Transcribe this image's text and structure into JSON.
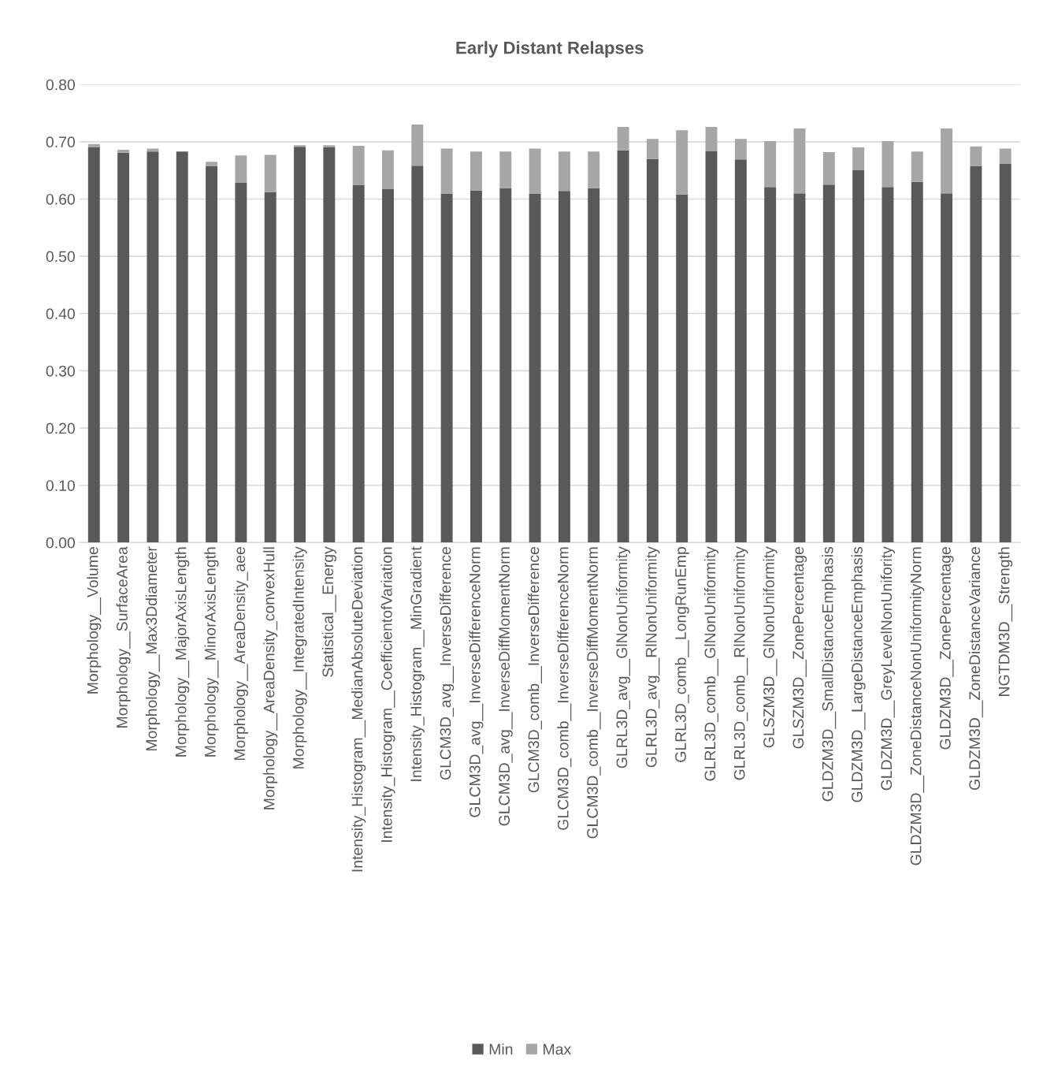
{
  "chart_data": {
    "type": "bar",
    "title": "Early Distant Relapses",
    "stacked": true,
    "categories": [
      "Morphology__Volume",
      "Morphology__SurfaceArea",
      "Morphology__Max3Ddiameter",
      "Morphology__MajorAxisLength",
      "Morphology__MinorAxisLength",
      "Morphology__AreaDensity_aee",
      "Morphology__AreaDensity_convexHull",
      "Morphology__IntegratedIntensity",
      "Statistical__Energy",
      "Intensity_Histogram__MedianAbsoluteDeviation",
      "Intensity_Histogram__CoefficientofVariation",
      "Intensity_Histogram__MinGradient",
      "GLCM3D_avg__InverseDifference",
      "GLCM3D_avg__InverseDifferenceNorm",
      "GLCM3D_avg__InverseDiffMomentNorm",
      "GLCM3D_comb__InverseDifference",
      "GLCM3D_comb__InverseDifferenceNorm",
      "GLCM3D_comb__InverseDiffMomentNorm",
      "GLRL3D_avg__GlNonUniformity",
      "GLRL3D_avg__RlNonUniformity",
      "GLRL3D_comb__LongRunEmp",
      "GLRL3D_comb__GlNonUniformity",
      "GLRL3D_comb__RlNonUniformity",
      "GLSZM3D__GlNonUniformity",
      "GLSZM3D__ZonePercentage",
      "GLDZM3D__SmallDistanceEmphasis",
      "GLDZM3D__LargeDistanceEmphasis",
      "GLDZM3D__GreyLevelNonUnifority",
      "GLDZM3D__ZoneDistanceNonUniformityNorm",
      "GLDZM3D__ZonePercentage",
      "GLDZM3D__ZoneDistanceVariance",
      "NGTDM3D__Strength"
    ],
    "series": [
      {
        "name": "Min",
        "color": "#595959",
        "values": [
          0.69,
          0.681,
          0.683,
          0.683,
          0.657,
          0.629,
          0.612,
          0.691,
          0.69,
          0.624,
          0.618,
          0.658,
          0.609,
          0.615,
          0.619,
          0.609,
          0.614,
          0.619,
          0.685,
          0.67,
          0.608,
          0.684,
          0.669,
          0.621,
          0.61,
          0.625,
          0.651,
          0.621,
          0.63,
          0.61,
          0.657,
          0.662
        ]
      },
      {
        "name": "Max",
        "color": "#a6a6a6",
        "values": [
          0.006,
          0.005,
          0.005,
          null,
          0.008,
          0.047,
          0.065,
          0.003,
          0.004,
          0.069,
          0.067,
          0.072,
          0.079,
          0.068,
          0.064,
          0.079,
          0.069,
          0.064,
          0.041,
          0.035,
          0.112,
          0.042,
          0.036,
          0.08,
          0.113,
          0.057,
          0.039,
          0.08,
          0.053,
          0.113,
          0.035,
          0.026
        ]
      }
    ],
    "ylim": [
      0,
      0.8
    ],
    "yticks": [
      {
        "value": 0,
        "label": "0.00"
      },
      {
        "value": 0.1,
        "label": "0.10"
      },
      {
        "value": 0.2,
        "label": "0.20"
      },
      {
        "value": 0.3,
        "label": "0.30"
      },
      {
        "value": 0.4,
        "label": "0.40"
      },
      {
        "value": 0.5,
        "label": "0.50"
      },
      {
        "value": 0.6,
        "label": "0.60"
      },
      {
        "value": 0.7,
        "label": "0.70"
      },
      {
        "value": 0.8,
        "label": "0.80"
      }
    ],
    "grid": "y",
    "legend": "bottom"
  }
}
